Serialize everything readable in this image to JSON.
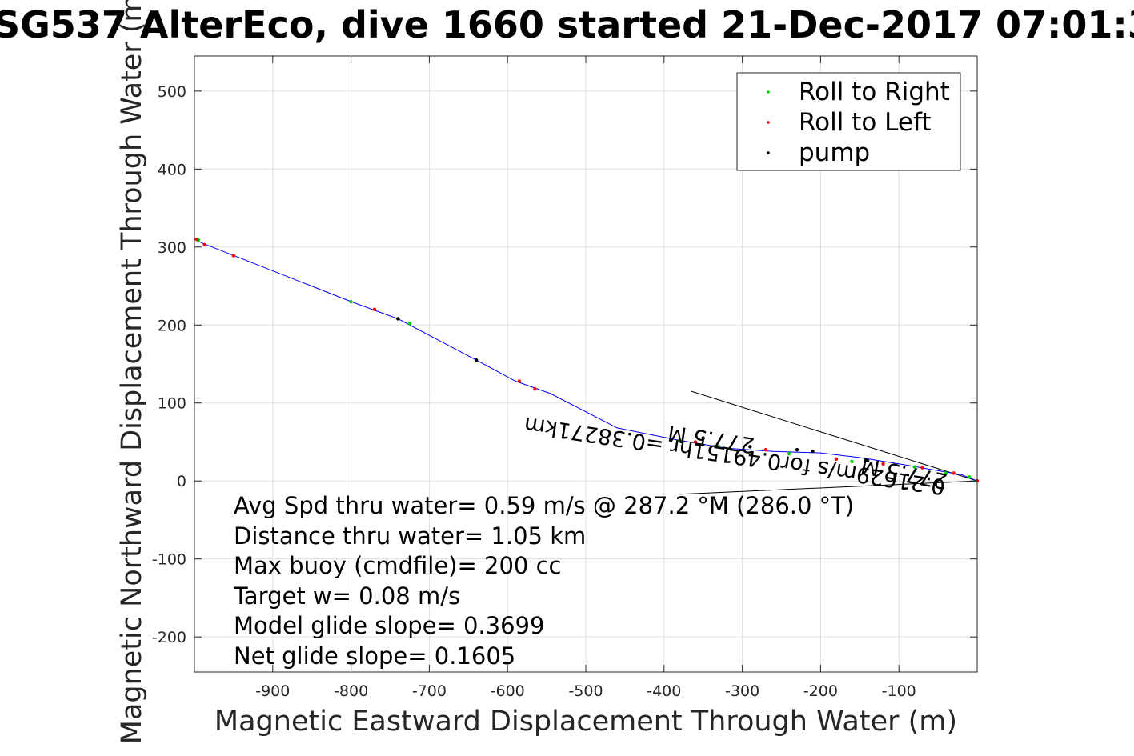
{
  "chart_data": {
    "type": "line",
    "title": "SG537 AlterEco, dive 1660 started 21-Dec-2017 07:01:3",
    "xlabel": "Magnetic Eastward Displacement Through Water (m)",
    "ylabel": "Magnetic Northward Displacement Through Water (m)",
    "xlim": [
      -1000,
      0
    ],
    "ylim": [
      -245,
      545
    ],
    "xticks": [
      -900,
      -800,
      -700,
      -600,
      -500,
      -400,
      -300,
      -200,
      -100
    ],
    "yticks": [
      -200,
      -100,
      0,
      100,
      200,
      300,
      400,
      500
    ],
    "grid": true,
    "legend_position": "top-right",
    "colors": {
      "track": "#0000ff",
      "roll_right": "#00cc00",
      "roll_left": "#ff0000",
      "pump": "#000000",
      "grid": "#e0e0e0"
    },
    "series": [
      {
        "name": "",
        "kind": "track",
        "x": [
          0,
          -20,
          -60,
          -100,
          -150,
          -200,
          -260,
          -320,
          -380,
          -460,
          -545,
          -590,
          -640,
          -725,
          -740,
          -800,
          -990,
          -1000
        ],
        "y": [
          0,
          8,
          15,
          22,
          30,
          36,
          38,
          42,
          52,
          68,
          112,
          128,
          155,
          200,
          208,
          230,
          305,
          310
        ]
      },
      {
        "name": "Roll to Right",
        "kind": "points",
        "x": [
          -10,
          -40,
          -80,
          -160,
          -240,
          -330,
          -380,
          -800,
          -725,
          -995
        ],
        "y": [
          5,
          10,
          18,
          25,
          35,
          44,
          52,
          230,
          202,
          309
        ]
      },
      {
        "name": "Roll to Left",
        "kind": "points",
        "x": [
          0,
          -30,
          -70,
          -120,
          -180,
          -270,
          -360,
          -585,
          -565,
          -770,
          -950,
          -987,
          -997
        ],
        "y": [
          0,
          10,
          17,
          22,
          28,
          40,
          50,
          128,
          118,
          220,
          289,
          303,
          310
        ]
      },
      {
        "name": "pump",
        "kind": "points",
        "x": [
          -140,
          -210,
          -230,
          -290,
          -350,
          -640,
          -740
        ],
        "y": [
          26,
          38,
          40,
          44,
          55,
          155,
          208
        ]
      }
    ],
    "reference_lines": [
      {
        "x": [
          0,
          -365
        ],
        "y": [
          0,
          115
        ]
      },
      {
        "x": [
          0,
          -380
        ],
        "y": [
          0,
          -17
        ]
      }
    ],
    "annotations": {
      "stats": [
        "Avg Spd thru water=  0.59 m/s @ 287.2 °M (286.0 °T)",
        "Distance thru water=  1.05 km",
        "Max buoy (cmdfile)= 200 cc",
        "Target w= 0.08 m/s",
        "Model glide slope= 0.3699",
        "Net glide slope= 0.1605"
      ],
      "flipped": [
        "0.21629m/s for0.49151hr =0.38271km",
        "277.5 M",
        "277.5 M"
      ]
    }
  }
}
